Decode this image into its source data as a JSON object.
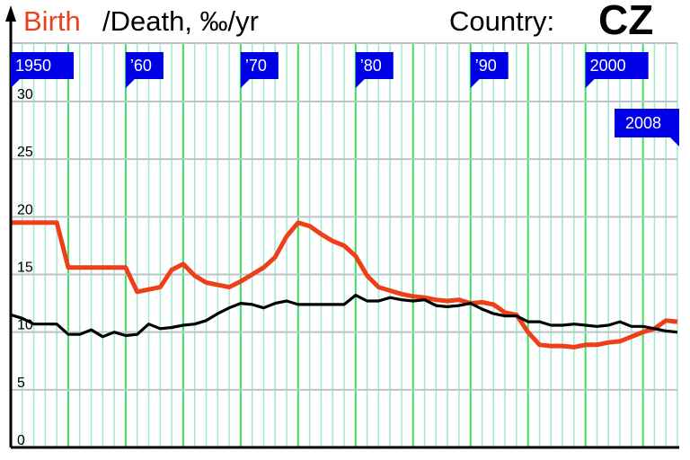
{
  "header": {
    "birth_label": "Birth",
    "death_label": "/Death, ‰/yr",
    "country_label": "Country:",
    "country_code": "CZ"
  },
  "colors": {
    "birth": "#ee3f18",
    "death": "#000000",
    "grid_major": "#39e05e",
    "grid_minor": "#9fe6d4",
    "grid_horizontal": "#b8c6c6",
    "flag": "#0000e8"
  },
  "chart_data": {
    "type": "line",
    "xlim": [
      1950,
      2008
    ],
    "ylim": [
      0,
      33
    ],
    "grid": true,
    "y_ticks": [
      0,
      5,
      10,
      15,
      20,
      25,
      30
    ],
    "x_flags": [
      {
        "year": 1950,
        "label": "1950"
      },
      {
        "year": 1960,
        "label": "’60"
      },
      {
        "year": 1970,
        "label": "’70"
      },
      {
        "year": 1980,
        "label": "’80"
      },
      {
        "year": 1990,
        "label": "’90"
      },
      {
        "year": 2000,
        "label": "2000"
      },
      {
        "year": 2008,
        "label": "2008"
      }
    ],
    "x": [
      1950,
      1951,
      1952,
      1953,
      1954,
      1955,
      1956,
      1957,
      1958,
      1959,
      1960,
      1961,
      1962,
      1963,
      1964,
      1965,
      1966,
      1967,
      1968,
      1969,
      1970,
      1971,
      1972,
      1973,
      1974,
      1975,
      1976,
      1977,
      1978,
      1979,
      1980,
      1981,
      1982,
      1983,
      1984,
      1985,
      1986,
      1987,
      1988,
      1989,
      1990,
      1991,
      1992,
      1993,
      1994,
      1995,
      1996,
      1997,
      1998,
      1999,
      2000,
      2001,
      2002,
      2003,
      2004,
      2005,
      2006,
      2007,
      2008
    ],
    "series": [
      {
        "name": "Birth",
        "values": [
          19.5,
          19.5,
          19.5,
          19.5,
          19.5,
          15.6,
          15.6,
          15.6,
          15.6,
          15.6,
          15.6,
          13.5,
          13.7,
          13.9,
          15.4,
          15.9,
          14.9,
          14.3,
          14.1,
          13.9,
          14.4,
          15.0,
          15.6,
          16.5,
          18.3,
          19.5,
          19.2,
          18.5,
          17.9,
          17.5,
          16.6,
          14.9,
          13.9,
          13.6,
          13.3,
          13.1,
          13.0,
          12.8,
          12.7,
          12.8,
          12.5,
          12.6,
          12.4,
          11.7,
          11.5,
          10.0,
          8.9,
          8.8,
          8.8,
          8.7,
          8.9,
          8.9,
          9.1,
          9.2,
          9.6,
          10.0,
          10.3,
          11.0,
          10.9
        ]
      },
      {
        "name": "Death",
        "values": [
          11.5,
          11.2,
          10.7,
          10.7,
          10.7,
          9.8,
          9.8,
          10.2,
          9.6,
          10.0,
          9.7,
          9.8,
          10.7,
          10.3,
          10.4,
          10.6,
          10.7,
          11.0,
          11.6,
          12.1,
          12.5,
          12.4,
          12.1,
          12.5,
          12.7,
          12.4,
          12.4,
          12.4,
          12.4,
          12.4,
          13.2,
          12.7,
          12.7,
          13.0,
          12.8,
          12.7,
          12.8,
          12.3,
          12.2,
          12.3,
          12.5,
          12.0,
          11.6,
          11.4,
          11.4,
          10.9,
          10.9,
          10.6,
          10.6,
          10.7,
          10.6,
          10.5,
          10.6,
          10.9,
          10.5,
          10.5,
          10.3,
          10.1,
          10.0
        ]
      }
    ]
  }
}
